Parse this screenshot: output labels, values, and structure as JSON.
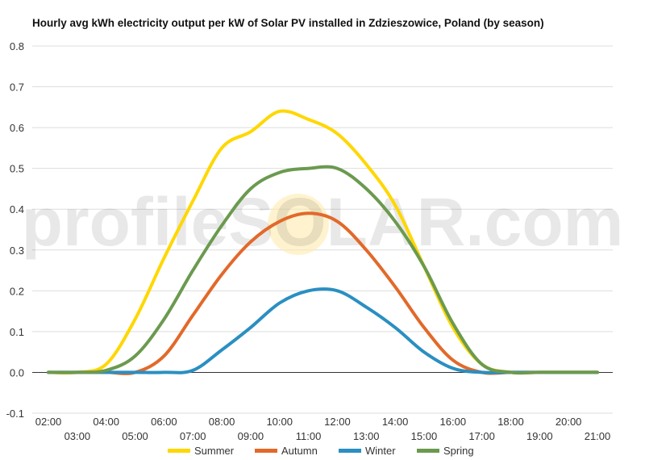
{
  "watermark": "profileSOLAR.com",
  "chart_data": {
    "type": "line",
    "title": "Hourly avg kWh electricity output per kW of Solar PV installed in Zdzieszowice, Poland (by season)",
    "xlabel": "",
    "ylabel": "",
    "ylim": [
      -0.1,
      0.8
    ],
    "yticks": [
      -0.1,
      0.0,
      0.1,
      0.2,
      0.3,
      0.4,
      0.5,
      0.6,
      0.7,
      0.8
    ],
    "ytick_labels": [
      "-0.1",
      "0.0",
      "0.1",
      "0.2",
      "0.3",
      "0.4",
      "0.5",
      "0.6",
      "0.7",
      "0.8"
    ],
    "x": [
      "02:00",
      "03:00",
      "04:00",
      "05:00",
      "06:00",
      "07:00",
      "08:00",
      "09:00",
      "10:00",
      "11:00",
      "12:00",
      "13:00",
      "14:00",
      "15:00",
      "16:00",
      "17:00",
      "18:00",
      "19:00",
      "20:00",
      "21:00"
    ],
    "grid": true,
    "legend_position": "bottom",
    "series": [
      {
        "name": "Summer",
        "color": "#FFD700",
        "values": [
          0.0,
          0.0,
          0.02,
          0.13,
          0.28,
          0.42,
          0.55,
          0.59,
          0.64,
          0.62,
          0.585,
          0.51,
          0.41,
          0.26,
          0.11,
          0.02,
          0.0,
          0.0,
          0.0,
          0.0
        ]
      },
      {
        "name": "Autumn",
        "color": "#E2692A",
        "values": [
          0.0,
          0.0,
          0.0,
          0.0,
          0.04,
          0.14,
          0.24,
          0.32,
          0.37,
          0.39,
          0.37,
          0.3,
          0.21,
          0.11,
          0.03,
          0.0,
          0.0,
          0.0,
          0.0,
          0.0
        ]
      },
      {
        "name": "Winter",
        "color": "#2A8FC1",
        "values": [
          0.0,
          0.0,
          0.0,
          0.0,
          0.0,
          0.005,
          0.055,
          0.11,
          0.17,
          0.2,
          0.2,
          0.16,
          0.11,
          0.05,
          0.01,
          0.0,
          0.0,
          0.0,
          0.0,
          0.0
        ]
      },
      {
        "name": "Spring",
        "color": "#6B9A4F",
        "values": [
          0.0,
          0.0,
          0.005,
          0.04,
          0.13,
          0.25,
          0.36,
          0.45,
          0.49,
          0.5,
          0.5,
          0.45,
          0.37,
          0.26,
          0.12,
          0.02,
          0.0,
          0.0,
          0.0,
          0.0
        ]
      }
    ]
  }
}
